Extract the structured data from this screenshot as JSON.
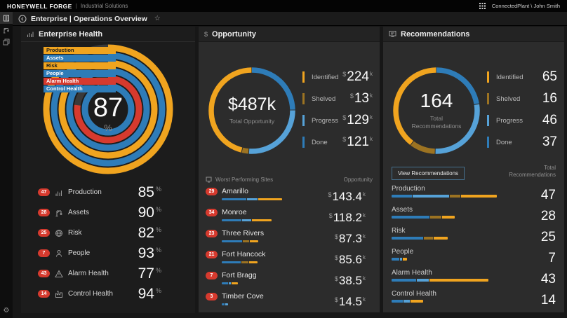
{
  "topbar": {
    "brand": "HONEYWELL FORGE",
    "separator": "|",
    "product": "Industrial Solutions",
    "account": "ConnectedPlant \\ John Smith"
  },
  "breadcrumb": {
    "title": "Enterprise | Operations Overview",
    "favorite_icon": "☆"
  },
  "colors": {
    "yellow": "#F0A41F",
    "amber": "#9C7322",
    "blue": "#2E7CB8",
    "lightblue": "#56A2D8",
    "red": "#D63A2E",
    "track": "#3A3A3A"
  },
  "enterprise_health": {
    "title": "Enterprise Health",
    "score": "87",
    "score_unit": "%",
    "rings": [
      {
        "label": "Production",
        "value": 85,
        "color": "yellow"
      },
      {
        "label": "Assets",
        "value": 90,
        "color": "blue"
      },
      {
        "label": "Risk",
        "value": 82,
        "color": "yellow"
      },
      {
        "label": "People",
        "value": 93,
        "color": "blue"
      },
      {
        "label": "Alarm Health",
        "value": 77,
        "color": "red"
      },
      {
        "label": "Control Health",
        "value": 94,
        "color": "blue"
      }
    ],
    "metrics": [
      {
        "badge": "47",
        "label": "Production",
        "value": "85",
        "unit": "%"
      },
      {
        "badge": "28",
        "label": "Assets",
        "value": "90",
        "unit": "%"
      },
      {
        "badge": "25",
        "label": "Risk",
        "value": "82",
        "unit": "%"
      },
      {
        "badge": "7",
        "label": "People",
        "value": "93",
        "unit": "%"
      },
      {
        "badge": "43",
        "label": "Alarm Health",
        "value": "77",
        "unit": "%"
      },
      {
        "badge": "14",
        "label": "Control Health",
        "value": "94",
        "unit": "%"
      }
    ]
  },
  "opportunity": {
    "title": "Opportunity",
    "total_value": "$487k",
    "total_label": "Total Opportunity",
    "legend": [
      {
        "label": "Identified",
        "prefix": "$",
        "value": "224",
        "suffix": "k",
        "color": "yellow"
      },
      {
        "label": "Shelved",
        "prefix": "$",
        "value": "13",
        "suffix": "k",
        "color": "amber"
      },
      {
        "label": "Progress",
        "prefix": "$",
        "value": "129",
        "suffix": "k",
        "color": "lightblue"
      },
      {
        "label": "Done",
        "prefix": "$",
        "value": "121",
        "suffix": "k",
        "color": "blue"
      }
    ],
    "sites_header": {
      "left": "Worst Performing Sites",
      "right": "Opportunity"
    },
    "sites": [
      {
        "badge": "29",
        "name": "Amarillo",
        "prefix": "$",
        "value": "143.4",
        "suffix": "k",
        "bar": {
          "total": 143.4,
          "segments": [
            [
              "blue",
              0.42
            ],
            [
              "lightblue",
              0.18
            ],
            [
              "yellow",
              0.4
            ]
          ]
        }
      },
      {
        "badge": "34",
        "name": "Monroe",
        "prefix": "$",
        "value": "118.2",
        "suffix": "k",
        "bar": {
          "total": 118.2,
          "segments": [
            [
              "blue",
              0.4
            ],
            [
              "lightblue",
              0.19
            ],
            [
              "yellow",
              0.41
            ]
          ]
        }
      },
      {
        "badge": "23",
        "name": "Three Rivers",
        "prefix": "$",
        "value": "87.3",
        "suffix": "k",
        "bar": {
          "total": 87.3,
          "segments": [
            [
              "blue",
              0.57
            ],
            [
              "amber",
              0.18
            ],
            [
              "yellow",
              0.25
            ]
          ]
        }
      },
      {
        "badge": "21",
        "name": "Fort Hancock",
        "prefix": "$",
        "value": "85.6",
        "suffix": "k",
        "bar": {
          "total": 85.6,
          "segments": [
            [
              "blue",
              0.55
            ],
            [
              "amber",
              0.2
            ],
            [
              "yellow",
              0.25
            ]
          ]
        }
      },
      {
        "badge": "7",
        "name": "Fort Bragg",
        "prefix": "$",
        "value": "38.5",
        "suffix": "k",
        "bar": {
          "total": 38.5,
          "segments": [
            [
              "blue",
              0.42
            ],
            [
              "lightblue",
              0.16
            ],
            [
              "yellow",
              0.42
            ]
          ]
        }
      },
      {
        "badge": "3",
        "name": "Timber Cove",
        "prefix": "$",
        "value": "14.5",
        "suffix": "k",
        "bar": {
          "total": 14.5,
          "segments": [
            [
              "blue",
              0.55
            ],
            [
              "lightblue",
              0.45
            ]
          ]
        }
      }
    ]
  },
  "recommendations": {
    "title": "Recommendations",
    "total_value": "164",
    "total_label": "Total Recommendations",
    "legend": [
      {
        "label": "Identified",
        "value": "65",
        "color": "yellow"
      },
      {
        "label": "Shelved",
        "value": "16",
        "color": "amber"
      },
      {
        "label": "Progress",
        "value": "46",
        "color": "lightblue"
      },
      {
        "label": "Done",
        "value": "37",
        "color": "blue"
      }
    ],
    "button_label": "View Recommendations",
    "list_header": "Total Recommendations",
    "categories": [
      {
        "label": "Production",
        "value": "47",
        "bar": {
          "total": 47,
          "segments": [
            [
              "blue",
              0.2
            ],
            [
              "lightblue",
              0.35
            ],
            [
              "amber",
              0.1
            ],
            [
              "yellow",
              0.35
            ]
          ]
        }
      },
      {
        "label": "Assets",
        "value": "28",
        "bar": {
          "total": 28,
          "segments": [
            [
              "blue",
              0.62
            ],
            [
              "amber",
              0.18
            ],
            [
              "yellow",
              0.2
            ]
          ]
        }
      },
      {
        "label": "Risk",
        "value": "25",
        "bar": {
          "total": 25,
          "segments": [
            [
              "blue",
              0.58
            ],
            [
              "amber",
              0.17
            ],
            [
              "yellow",
              0.25
            ]
          ]
        }
      },
      {
        "label": "People",
        "value": "7",
        "bar": {
          "total": 7,
          "segments": [
            [
              "blue",
              0.55
            ],
            [
              "lightblue",
              0.12
            ],
            [
              "yellow",
              0.33
            ]
          ]
        }
      },
      {
        "label": "Alarm Health",
        "value": "43",
        "bar": {
          "total": 43,
          "segments": [
            [
              "blue",
              0.26
            ],
            [
              "lightblue",
              0.12
            ],
            [
              "yellow",
              0.62
            ]
          ]
        }
      },
      {
        "label": "Control Health",
        "value": "14",
        "bar": {
          "total": 14,
          "segments": [
            [
              "blue",
              0.38
            ],
            [
              "lightblue",
              0.2
            ],
            [
              "yellow",
              0.42
            ]
          ]
        }
      }
    ]
  }
}
